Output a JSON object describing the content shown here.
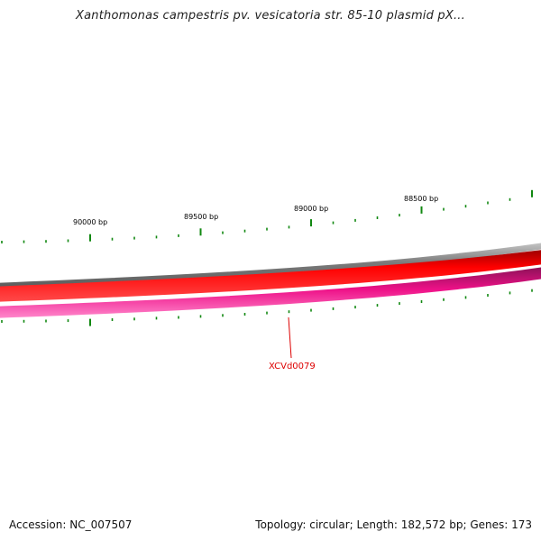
{
  "title": "Xanthomonas campestris pv. vesicatoria str. 85-10 plasmid pX...",
  "map": {
    "tick_labels": [
      "90000 bp",
      "89500 bp",
      "89000 bp",
      "88500 bp"
    ],
    "gene_label": "XCVd0079",
    "colors": {
      "outer_ring": "#7a7a7a",
      "forward_strand": "#ee0000",
      "reverse_strand": "#ee3399",
      "ticks": "#118811",
      "gene_label": "#dd0000"
    }
  },
  "footer": {
    "accession": "Accession: NC_007507",
    "summary": "Topology: circular; Length: 182,572 bp; Genes: 173"
  }
}
